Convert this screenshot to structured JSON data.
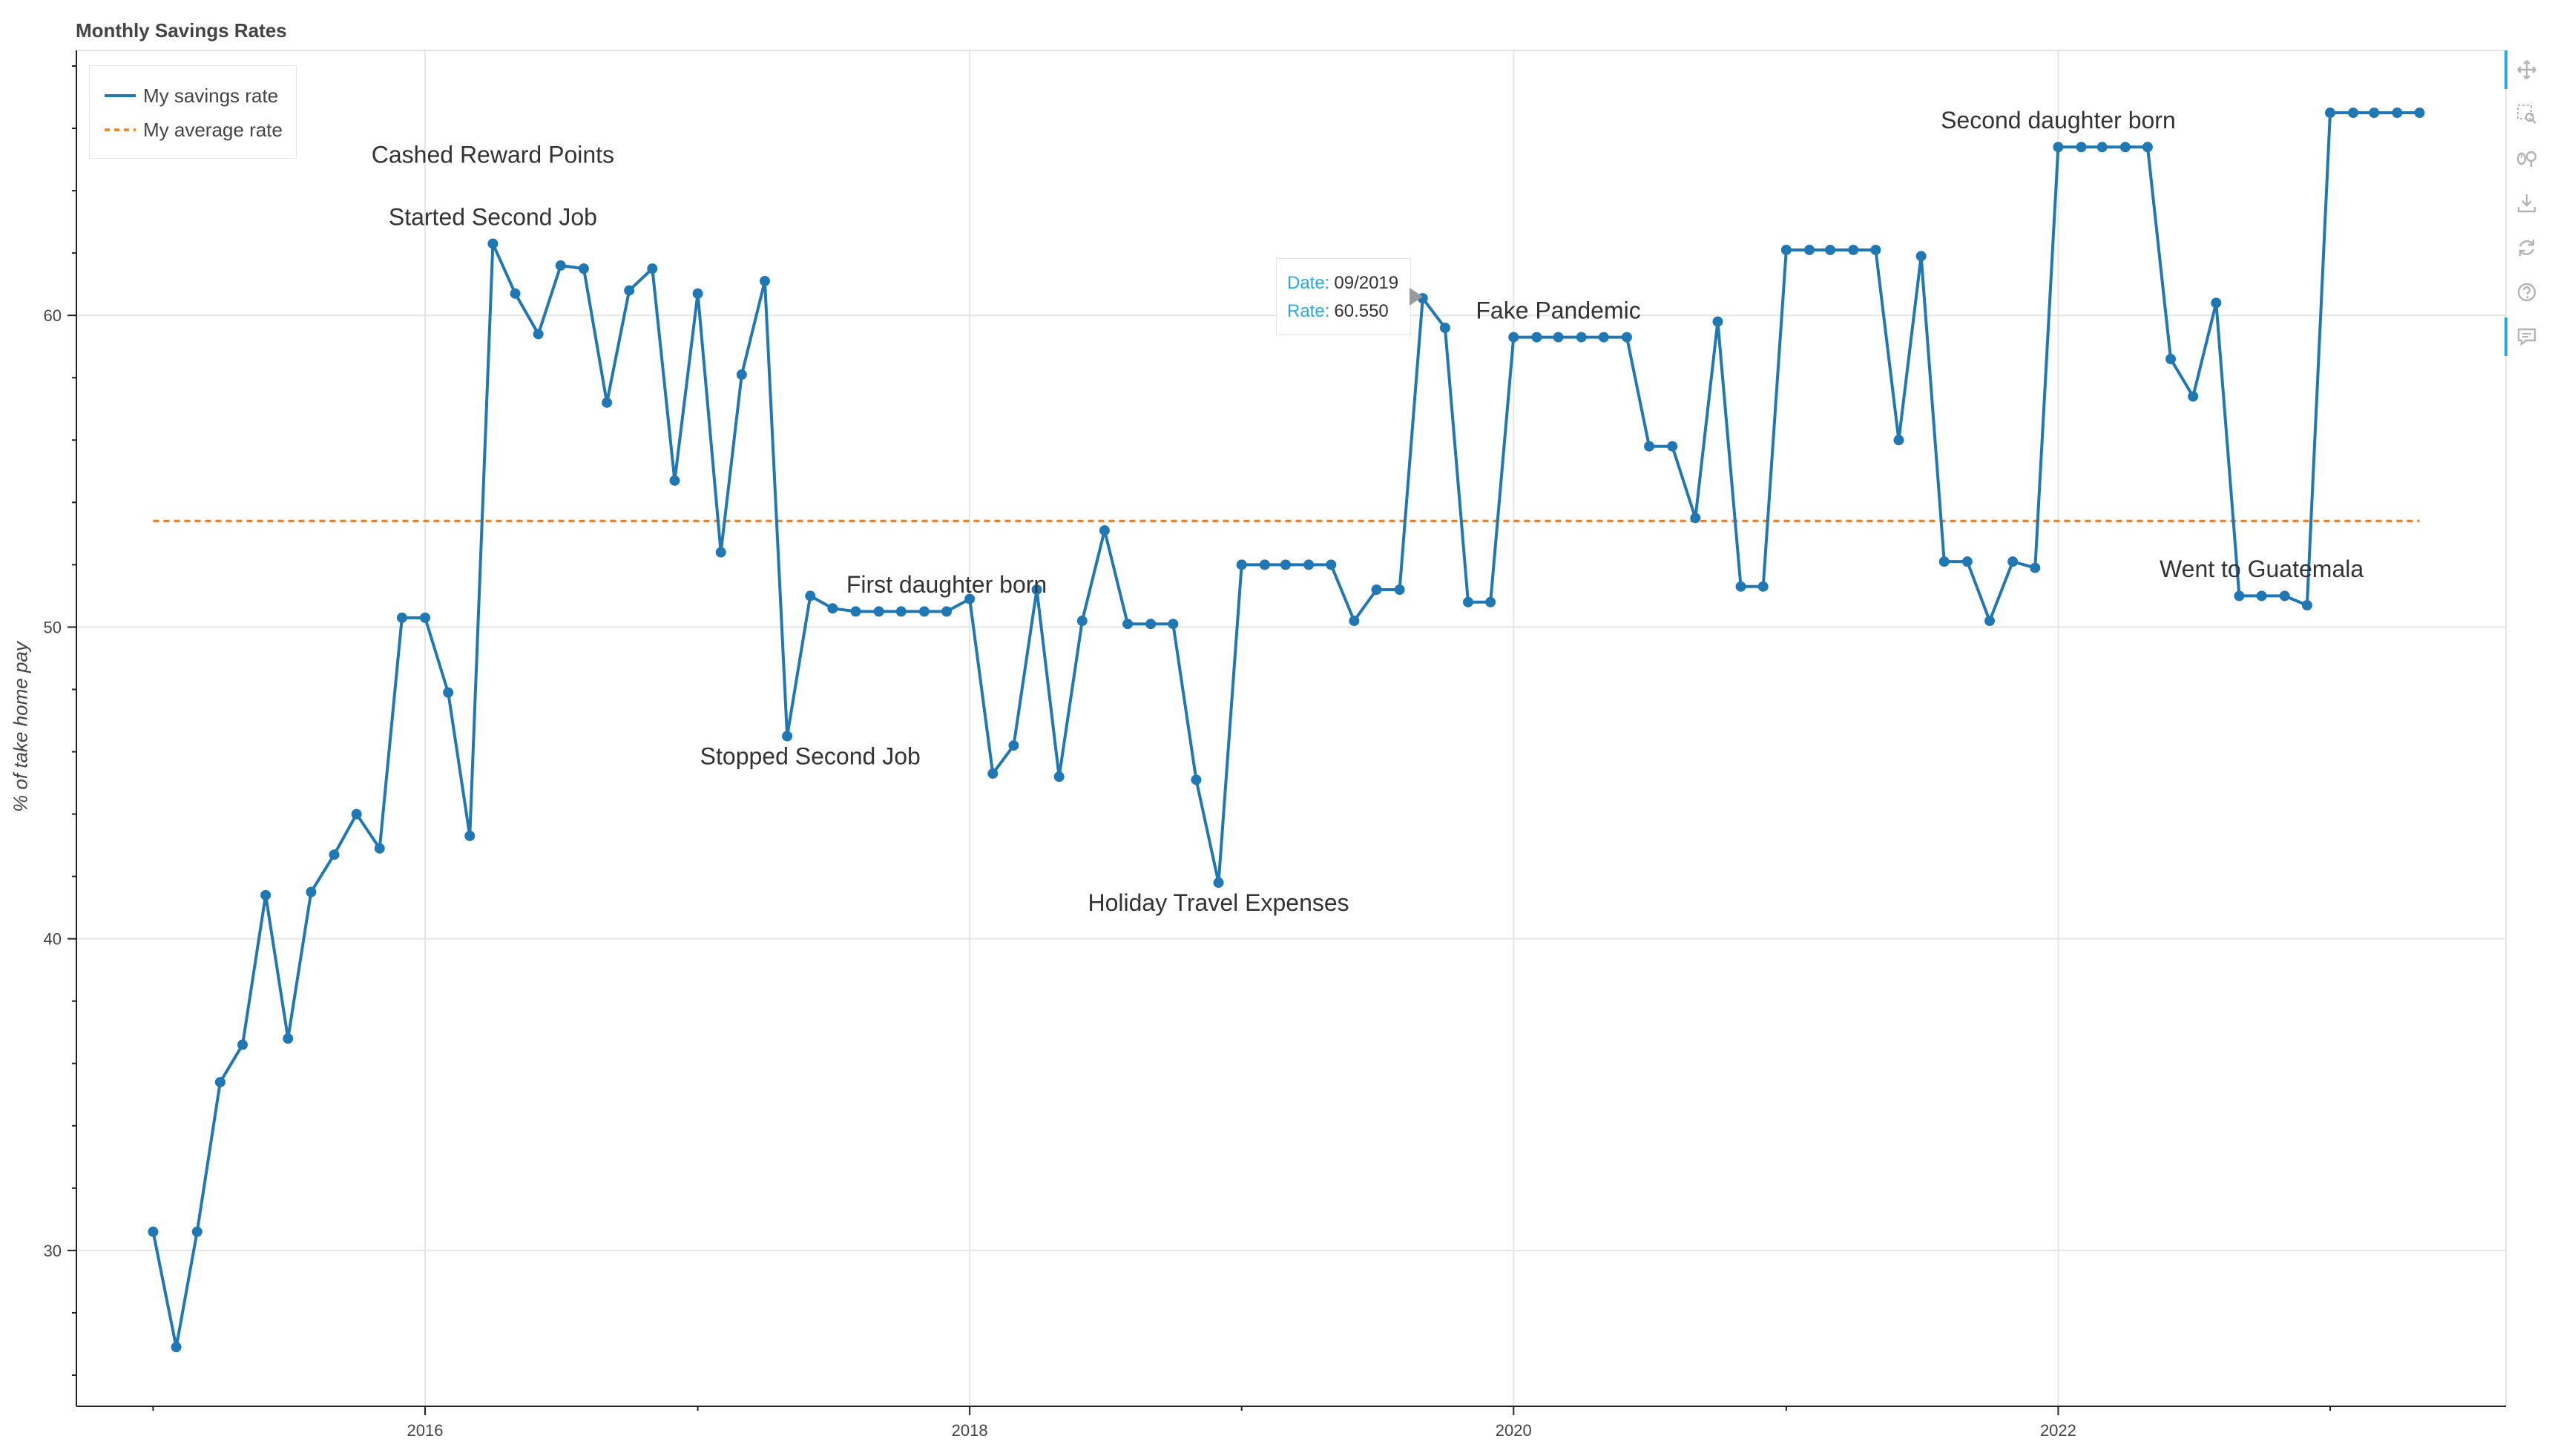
{
  "chart_data": {
    "type": "line",
    "title": "Monthly Savings Rates",
    "ylabel": "% of take home pay",
    "xlabel": "",
    "xlim": [
      "2014-09-20",
      "2023-08-25"
    ],
    "ylim": [
      25,
      68.5
    ],
    "x_ticks": [
      "2016",
      "2018",
      "2020",
      "2022"
    ],
    "y_ticks": [
      30,
      40,
      50,
      60
    ],
    "grid": true,
    "legend": "top-left",
    "legend_entries": [
      "My savings rate",
      "My average rate"
    ],
    "series": [
      {
        "name": "My savings rate",
        "style": "solid-with-markers",
        "color": "#1f77b4",
        "x": [
          "2015-01",
          "2015-02",
          "2015-03",
          "2015-04",
          "2015-05",
          "2015-06",
          "2015-07",
          "2015-08",
          "2015-09",
          "2015-10",
          "2015-11",
          "2015-12",
          "2016-01",
          "2016-02",
          "2016-03",
          "2016-04",
          "2016-05",
          "2016-06",
          "2016-07",
          "2016-08",
          "2016-09",
          "2016-10",
          "2016-11",
          "2016-12",
          "2017-01",
          "2017-02",
          "2017-03",
          "2017-04",
          "2017-05",
          "2017-06",
          "2017-07",
          "2017-08",
          "2017-09",
          "2017-10",
          "2017-11",
          "2017-12",
          "2018-01",
          "2018-02",
          "2018-03",
          "2018-04",
          "2018-05",
          "2018-06",
          "2018-07",
          "2018-08",
          "2018-09",
          "2018-10",
          "2018-11",
          "2018-12",
          "2019-01",
          "2019-02",
          "2019-03",
          "2019-04",
          "2019-05",
          "2019-06",
          "2019-07",
          "2019-08",
          "2019-09",
          "2019-10",
          "2019-11",
          "2019-12",
          "2020-01",
          "2020-02",
          "2020-03",
          "2020-04",
          "2020-05",
          "2020-06",
          "2020-07",
          "2020-08",
          "2020-09",
          "2020-10",
          "2020-11",
          "2020-12",
          "2021-01",
          "2021-02",
          "2021-03",
          "2021-04",
          "2021-05",
          "2021-06",
          "2021-07",
          "2021-08",
          "2021-09",
          "2021-10",
          "2021-11",
          "2021-12",
          "2022-01",
          "2022-02",
          "2022-03",
          "2022-04",
          "2022-05",
          "2022-06",
          "2022-07",
          "2022-08",
          "2022-09",
          "2022-10",
          "2022-11",
          "2022-12",
          "2023-01",
          "2023-02",
          "2023-03",
          "2023-04",
          "2023-05"
        ],
        "y": [
          30.6,
          26.9,
          30.6,
          35.4,
          36.6,
          41.4,
          36.8,
          41.5,
          42.7,
          44.0,
          42.9,
          50.3,
          50.3,
          47.9,
          43.3,
          62.3,
          60.7,
          59.4,
          61.6,
          61.5,
          57.2,
          60.8,
          61.5,
          54.7,
          60.7,
          52.4,
          58.1,
          61.1,
          46.5,
          51.0,
          50.6,
          50.5,
          50.5,
          50.5,
          50.5,
          50.5,
          50.9,
          45.3,
          46.2,
          51.2,
          45.2,
          50.2,
          53.1,
          50.1,
          50.1,
          50.1,
          45.1,
          41.8,
          52.0,
          52.0,
          52.0,
          52.0,
          52.0,
          50.2,
          51.2,
          51.2,
          60.55,
          59.6,
          50.8,
          50.8,
          59.3,
          59.3,
          59.3,
          59.3,
          59.3,
          59.3,
          55.8,
          55.8,
          53.5,
          59.8,
          51.3,
          51.3,
          62.1,
          62.1,
          62.1,
          62.1,
          62.1,
          56.0,
          61.9,
          52.1,
          52.1,
          50.2,
          52.1,
          51.9,
          65.4,
          65.4,
          65.4,
          65.4,
          65.4,
          58.6,
          57.4,
          60.4,
          51.0,
          51.0,
          51.0,
          50.7,
          66.5,
          66.5,
          66.5,
          66.5,
          66.5
        ]
      },
      {
        "name": "My average rate",
        "style": "dashed",
        "color": "#ff7f0e",
        "x": [
          "2015-01",
          "2023-05"
        ],
        "y": [
          53.4,
          53.4
        ]
      }
    ],
    "annotations": [
      {
        "text": "Cashed Reward Points",
        "x": "2016-04",
        "y": 64.9
      },
      {
        "text": "Started Second Job",
        "x": "2016-04",
        "y": 62.9
      },
      {
        "text": "Stopped Second Job",
        "x": "2017-06",
        "y": 45.6
      },
      {
        "text": "First daughter born",
        "x": "2017-12",
        "y": 51.1
      },
      {
        "text": "Holiday Travel Expenses",
        "x": "2018-12",
        "y": 40.9
      },
      {
        "text": "Fake Pandemic",
        "x": "2020-03",
        "y": 59.9
      },
      {
        "text": "Second daughter born",
        "x": "2022-01",
        "y": 66.0
      },
      {
        "text": "Went to Guatemala",
        "x": "2022-10",
        "y": 51.6
      }
    ],
    "tooltip": {
      "date_label": "Date:",
      "date_value": "09/2019",
      "rate_label": "Rate:",
      "rate_value": "60.550"
    }
  },
  "toolbar": {
    "tools": [
      {
        "icon": "pan-icon",
        "active": true
      },
      {
        "icon": "box-zoom-icon",
        "active": false
      },
      {
        "icon": "wheel-zoom-icon",
        "active": false
      },
      {
        "icon": "save-icon",
        "active": false
      },
      {
        "icon": "reset-icon",
        "active": false
      },
      {
        "icon": "help-icon",
        "active": false
      },
      {
        "icon": "hover-icon",
        "active": true
      }
    ]
  },
  "colors": {
    "accent": "#26aae1",
    "series": "#1f77b4",
    "average": "#ff7f0e"
  }
}
